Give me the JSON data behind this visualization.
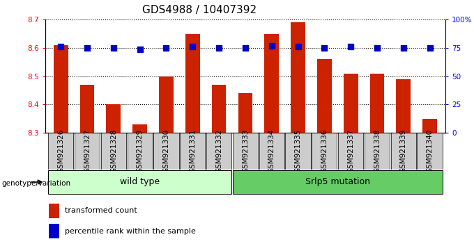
{
  "title": "GDS4988 / 10407392",
  "samples": [
    "GSM921326",
    "GSM921327",
    "GSM921328",
    "GSM921329",
    "GSM921330",
    "GSM921331",
    "GSM921332",
    "GSM921333",
    "GSM921334",
    "GSM921335",
    "GSM921336",
    "GSM921337",
    "GSM921338",
    "GSM921339",
    "GSM921340"
  ],
  "transformed_counts": [
    8.61,
    8.47,
    8.4,
    8.33,
    8.5,
    8.65,
    8.47,
    8.44,
    8.65,
    8.69,
    8.56,
    8.51,
    8.51,
    8.49,
    8.35
  ],
  "percentile_ranks": [
    76,
    75,
    75,
    74,
    75,
    76,
    75,
    75,
    77,
    76,
    75,
    76,
    75,
    75,
    75
  ],
  "wild_type_count": 7,
  "mutation_count": 8,
  "group1_label": "wild type",
  "group2_label": "Srlp5 mutation",
  "genotype_label": "genotype/variation",
  "legend_count_label": "transformed count",
  "legend_percentile_label": "percentile rank within the sample",
  "ylim_left": [
    8.3,
    8.7
  ],
  "ylim_right": [
    0,
    100
  ],
  "yticks_left": [
    8.3,
    8.4,
    8.5,
    8.6,
    8.7
  ],
  "yticks_right": [
    0,
    25,
    50,
    75,
    100
  ],
  "bar_color": "#CC2200",
  "dot_color": "#0000CC",
  "wild_type_bg": "#CCFFCC",
  "mutation_bg": "#66CC66",
  "tick_label_bg": "#CCCCCC",
  "title_fontsize": 11,
  "tick_fontsize": 7.5,
  "dot_size": 28,
  "bar_width": 0.55
}
